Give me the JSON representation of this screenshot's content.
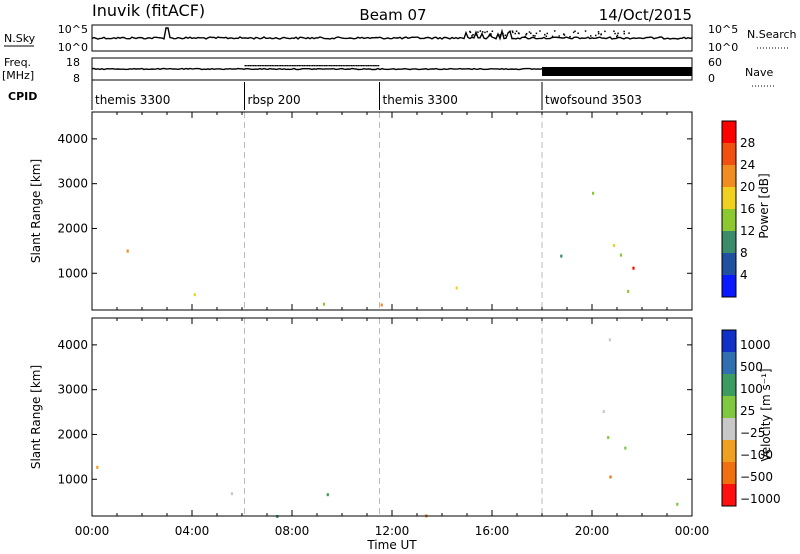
{
  "header": {
    "station": "Inuvik (fitACF)",
    "beam": "Beam 07",
    "date": "14/Oct/2015"
  },
  "strips": {
    "nsky_label": "N.Sky",
    "nsearch_label": "N.Search",
    "nsky_ticks": [
      "10^5",
      "10^0"
    ],
    "nsearch_ticks": [
      "10^5",
      "10^0"
    ],
    "freq_label": "Freq.",
    "freq_unit": "[MHz]",
    "freq_ticks": [
      18,
      8
    ],
    "nave_label": "Nave",
    "nave_ticks": [
      60,
      0
    ],
    "cpid_label": "CPID"
  },
  "cpid_segments": [
    {
      "name": "themis 3300",
      "start": 0,
      "end": 6.1
    },
    {
      "name": "rbsp 200",
      "start": 6.1,
      "end": 11.5
    },
    {
      "name": "themis 3300",
      "start": 11.5,
      "end": 18.0
    },
    {
      "name": "twofsound 3503",
      "start": 18.0,
      "end": 24
    }
  ],
  "chart_data": [
    {
      "type": "heatmap",
      "name": "Power",
      "ylabel": "Slant Range [km]",
      "yticks": [
        1000,
        2000,
        3000,
        4000
      ],
      "ylim": [
        180,
        4600
      ],
      "xlim": [
        0,
        24
      ],
      "colorbar": {
        "label": "Power [dB]",
        "ticks": [
          4,
          8,
          12,
          16,
          20,
          24,
          28
        ]
      }
    },
    {
      "type": "heatmap",
      "name": "Velocity",
      "ylabel": "Slant Range [km]",
      "yticks": [
        1000,
        2000,
        3000,
        4000
      ],
      "ylim": [
        180,
        4600
      ],
      "xlim": [
        0,
        24
      ],
      "colorbar": {
        "label": "Velocity [m s⁻¹]",
        "ticks": [
          "1000",
          "500",
          "100",
          "25",
          "−25",
          "−100",
          "−500",
          "−1000"
        ]
      },
      "xticks": [
        "00:00",
        "04:00",
        "08:00",
        "12:00",
        "16:00",
        "20:00",
        "00:00"
      ],
      "xlabel": "Time UT"
    }
  ],
  "colors": {
    "power": [
      "#0a1aff",
      "#2050a0",
      "#3a8c6a",
      "#8cc830",
      "#f0d020",
      "#f08c20",
      "#f05010",
      "#ff0000"
    ],
    "velocity": [
      "#1030c8",
      "#3070b0",
      "#3c9c60",
      "#80c840",
      "#c8c8c8",
      "#f0a020",
      "#f07010",
      "#ff1010"
    ]
  }
}
